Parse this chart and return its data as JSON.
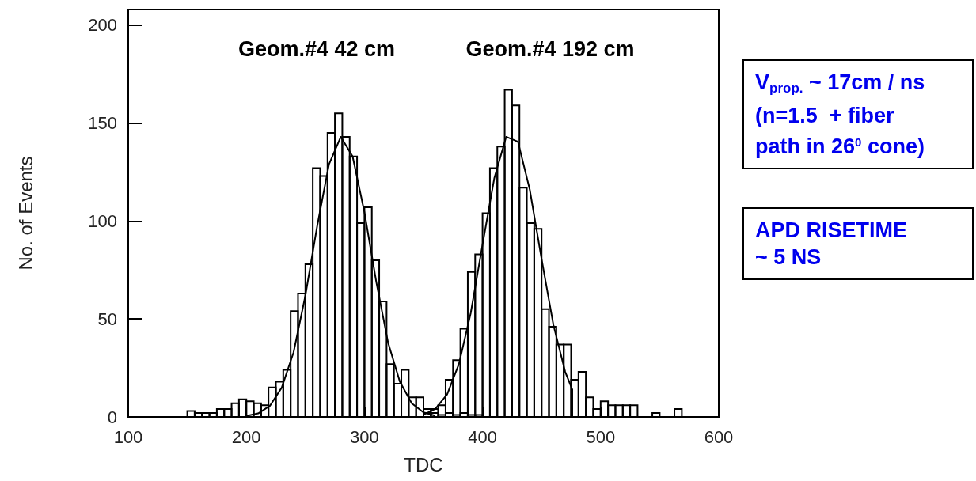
{
  "chart_data": {
    "type": "histogram",
    "xlabel": "TDC",
    "ylabel": "No. of Events",
    "bins": [
      150,
      156.25,
      162.5,
      168.75,
      175,
      181.25,
      187.5,
      193.75,
      200,
      206.25,
      212.5,
      218.75,
      225,
      231.25,
      237.5,
      243.75,
      250,
      256.25,
      262.5,
      268.75,
      275,
      281.25,
      287.5,
      293.75,
      300,
      306.25,
      312.5,
      318.75,
      325,
      331.25,
      337.5,
      343.75,
      350,
      356.25,
      362.5,
      368.75,
      375,
      381.25,
      387.5,
      393.75,
      400,
      406.25,
      412.5,
      418.75,
      425,
      431.25,
      437.5,
      443.75,
      450,
      456.25,
      462.5,
      468.75,
      475,
      481.25,
      487.5,
      493.75,
      500,
      506.25,
      512.5,
      518.75,
      525,
      531.25,
      537.5,
      543.75,
      550,
      556.25,
      562.5,
      568.75,
      575
    ],
    "series": [
      {
        "color": "#000000",
        "values": [
          3,
          2,
          2,
          2,
          4,
          4,
          7,
          9,
          8,
          7,
          6,
          15,
          18,
          24,
          54,
          63,
          78,
          127,
          123,
          145,
          155,
          143,
          133,
          99,
          107,
          80,
          59,
          27,
          17,
          24,
          10,
          10,
          4,
          2,
          1,
          2,
          1,
          2,
          1,
          1,
          0,
          0,
          0,
          0,
          0,
          0,
          0,
          0,
          0,
          0,
          0,
          0,
          0,
          0,
          0,
          0,
          0,
          0,
          0,
          0,
          0,
          0,
          0,
          0,
          0,
          0,
          0,
          0
        ]
      },
      {
        "color": "#000000",
        "values": [
          0,
          0,
          0,
          0,
          0,
          0,
          0,
          0,
          0,
          0,
          0,
          0,
          0,
          0,
          0,
          0,
          0,
          0,
          0,
          0,
          0,
          0,
          0,
          0,
          0,
          0,
          0,
          0,
          0,
          0,
          0,
          0,
          2,
          4,
          6,
          19,
          29,
          45,
          74,
          83,
          104,
          127,
          138,
          167,
          159,
          117,
          99,
          96,
          55,
          46,
          37,
          37,
          19,
          23,
          10,
          4,
          8,
          6,
          6,
          6,
          6,
          0,
          0,
          2,
          0,
          0,
          4,
          0
        ]
      },
      {
        "type": "line",
        "color": "#000000",
        "x": [
          200,
          210,
          220,
          230,
          240,
          250,
          260,
          270,
          280,
          290,
          300,
          310,
          320,
          330,
          340,
          350,
          360
        ],
        "values": [
          0.5,
          1.8,
          5.7,
          15,
          33,
          62,
          97.5,
          129,
          143,
          133,
          104.5,
          69,
          38,
          18,
          7,
          2.3,
          0.6
        ]
      },
      {
        "type": "line",
        "color": "#000000",
        "x": [
          350,
          360,
          370,
          380,
          390,
          400,
          410,
          420,
          430,
          440,
          450,
          460,
          470,
          476,
          476
        ],
        "values": [
          1.2,
          4.1,
          11.5,
          27,
          53,
          88,
          122,
          143,
          140.5,
          116,
          80.6,
          47,
          23,
          14,
          0
        ]
      }
    ],
    "xlim": [
      100,
      600
    ],
    "xticks": [
      100,
      200,
      300,
      400,
      500,
      600
    ],
    "ylim": [
      0,
      208
    ],
    "yticks": [
      0,
      50,
      100,
      150,
      200
    ],
    "grid": false,
    "marker": "none",
    "line_style": "solid",
    "annotations": [
      "Geom.#4 42 cm",
      "Geom.#4 192 cm",
      "V$_{prop.}$ ~ 17cm / ns\n(n=1.5  + fiber\npath in 26$^{0}$ cone)",
      "APD RISETIME\n~ 5 NS"
    ]
  }
}
